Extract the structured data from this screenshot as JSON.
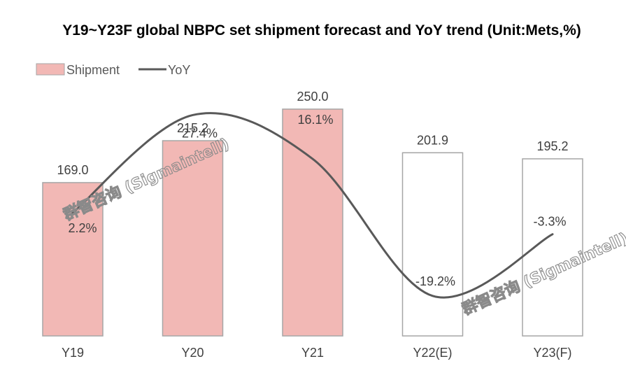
{
  "chart_data": {
    "type": "bar",
    "title": "Y19~Y23F global NBPC set shipment forecast and YoY trend (Unit:Mets,%)",
    "categories": [
      "Y19",
      "Y20",
      "Y21",
      "Y22(E)",
      "Y23(F)"
    ],
    "legend": {
      "placement": "top-left",
      "entries": [
        "Shipment",
        "YoY"
      ]
    },
    "series": [
      {
        "name": "Shipment",
        "type": "bar",
        "values": [
          169.0,
          215.2,
          250.0,
          201.9,
          195.2
        ],
        "labels": [
          "169.0",
          "215.2",
          "250.0",
          "201.9",
          "195.2"
        ],
        "fill_colors": [
          "#f2b8b5",
          "#f2b8b5",
          "#f2b8b5",
          "#ffffff",
          "#ffffff"
        ],
        "stroke_color": "#a6a6a6"
      },
      {
        "name": "YoY",
        "type": "line",
        "smooth": true,
        "values": [
          2.2,
          27.4,
          16.1,
          -19.2,
          -3.3
        ],
        "labels": [
          "2.2%",
          "27.4%",
          "16.1%",
          "-19.2%",
          "-3.3%"
        ],
        "color": "#595959"
      }
    ],
    "y_bar_range": [
      0,
      270
    ],
    "y_line_range": [
      -25,
      30
    ],
    "grid": false,
    "watermark": "群智咨询 (Sigmaintell)"
  }
}
